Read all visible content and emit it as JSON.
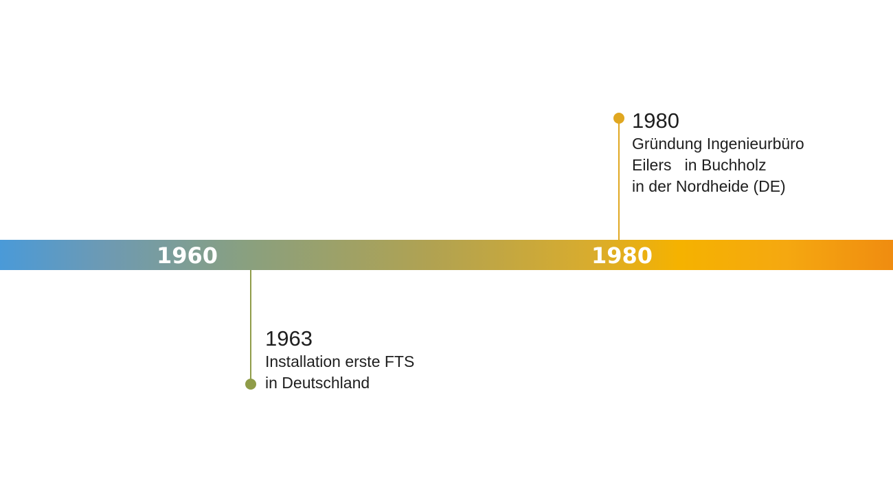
{
  "colors": {
    "bar_start": "#4a9ad8",
    "bar_mid": "#b0a252",
    "bar_end": "#f08c10",
    "marker_1963": "#8f9c48",
    "marker_1980": "#e0a720",
    "label_text": "#ffffff",
    "event_text": "#1e1e1e"
  },
  "decades": [
    {
      "label": "1960"
    },
    {
      "label": "1980"
    }
  ],
  "events": [
    {
      "year": "1963",
      "lines": [
        "Installation erste FTS",
        "in Deutschland"
      ]
    },
    {
      "year": "1980",
      "lines": [
        "Gründung Ingenieurbüro",
        "Eilers   in Buchholz",
        "in der Nordheide (DE)"
      ]
    }
  ]
}
